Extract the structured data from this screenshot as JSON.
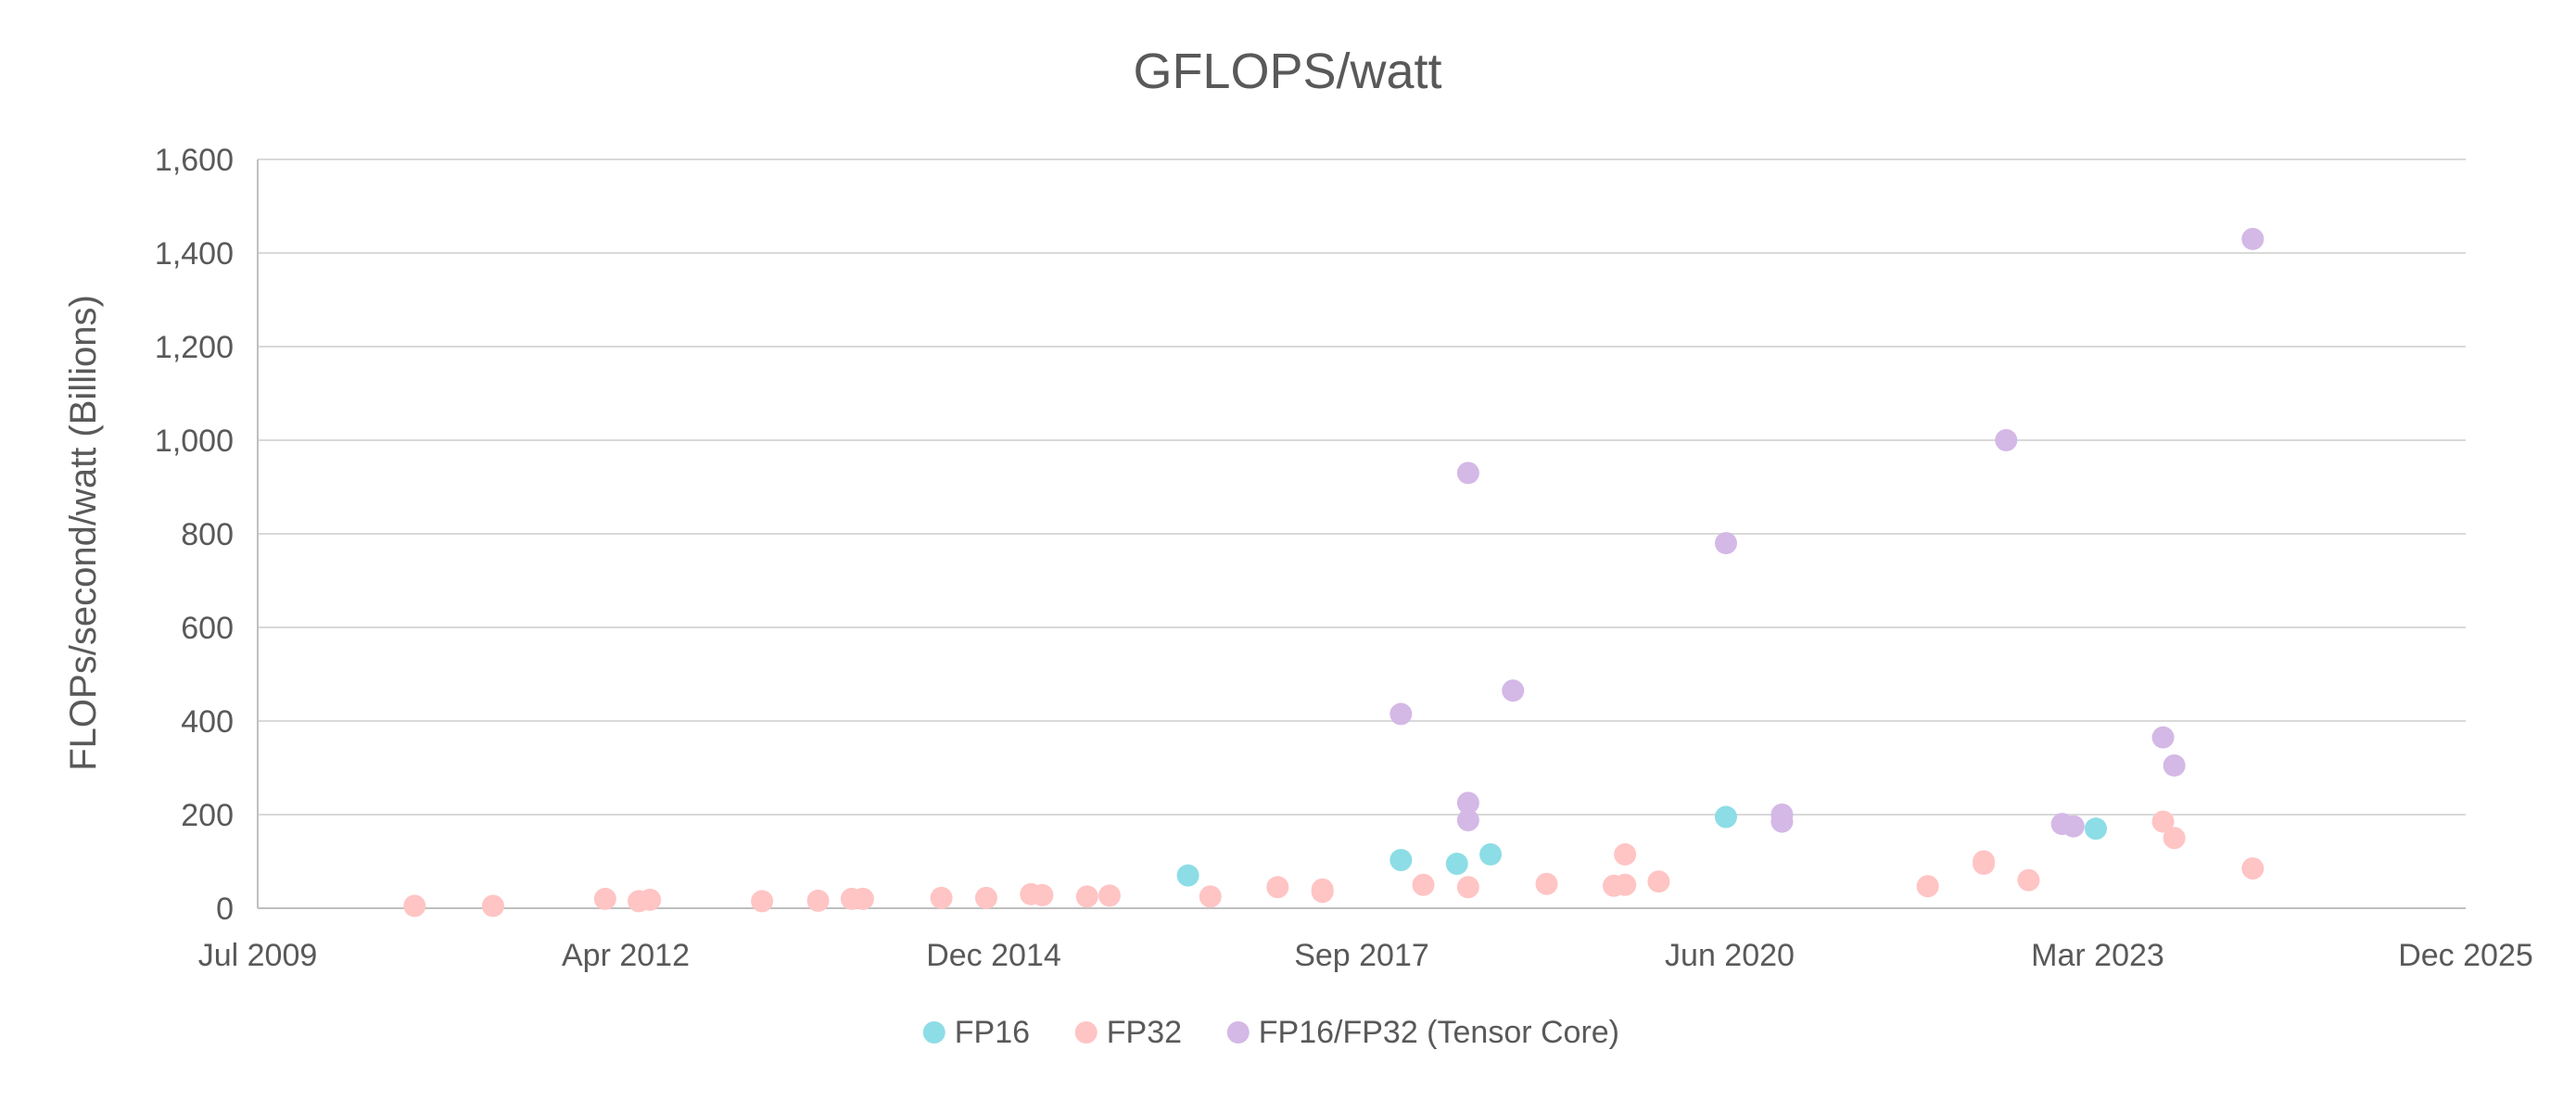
{
  "chart_data": {
    "type": "scatter",
    "title": "GFLOPS/watt",
    "xlabel": "",
    "ylabel": "FLOPs/second/watt (Billions)",
    "x_axis": {
      "type": "date",
      "range": [
        "2009-07",
        "2025-12"
      ],
      "tick_labels": [
        "Jul 2009",
        "Apr 2012",
        "Dec 2014",
        "Sep 2017",
        "Jun 2020",
        "Mar 2023",
        "Dec 2025"
      ]
    },
    "y_axis": {
      "range": [
        0,
        1600
      ],
      "tick_values": [
        0,
        200,
        400,
        600,
        800,
        1000,
        1200,
        1400,
        1600
      ],
      "tick_labels": [
        "0",
        "200",
        "400",
        "600",
        "800",
        "1,000",
        "1,200",
        "1,400",
        "1,600"
      ]
    },
    "grid": true,
    "legend_position": "bottom",
    "series": [
      {
        "name": "FP16",
        "color": "#8ddde6",
        "points": [
          {
            "x": "2016-06",
            "y": 70
          },
          {
            "x": "2018-01",
            "y": 103
          },
          {
            "x": "2018-06",
            "y": 95
          },
          {
            "x": "2018-09",
            "y": 115
          },
          {
            "x": "2020-06",
            "y": 195
          },
          {
            "x": "2023-03",
            "y": 170
          }
        ]
      },
      {
        "name": "FP32",
        "color": "#ffc4c4",
        "points": [
          {
            "x": "2010-09",
            "y": 5
          },
          {
            "x": "2011-04",
            "y": 5
          },
          {
            "x": "2012-02",
            "y": 20
          },
          {
            "x": "2012-05",
            "y": 15
          },
          {
            "x": "2012-06",
            "y": 18
          },
          {
            "x": "2013-04",
            "y": 15
          },
          {
            "x": "2013-09",
            "y": 16
          },
          {
            "x": "2013-12",
            "y": 20
          },
          {
            "x": "2014-01",
            "y": 20
          },
          {
            "x": "2014-08",
            "y": 22
          },
          {
            "x": "2014-12",
            "y": 22
          },
          {
            "x": "2015-04",
            "y": 30
          },
          {
            "x": "2015-05",
            "y": 28
          },
          {
            "x": "2015-09",
            "y": 25
          },
          {
            "x": "2015-11",
            "y": 27
          },
          {
            "x": "2016-08",
            "y": 25
          },
          {
            "x": "2017-02",
            "y": 45
          },
          {
            "x": "2017-06",
            "y": 40
          },
          {
            "x": "2017-06",
            "y": 35
          },
          {
            "x": "2018-03",
            "y": 50
          },
          {
            "x": "2018-07",
            "y": 45
          },
          {
            "x": "2019-02",
            "y": 52
          },
          {
            "x": "2019-08",
            "y": 48
          },
          {
            "x": "2019-09",
            "y": 115
          },
          {
            "x": "2019-09",
            "y": 50
          },
          {
            "x": "2019-12",
            "y": 57
          },
          {
            "x": "2021-12",
            "y": 47
          },
          {
            "x": "2022-05",
            "y": 95
          },
          {
            "x": "2022-05",
            "y": 100
          },
          {
            "x": "2022-09",
            "y": 60
          },
          {
            "x": "2023-09",
            "y": 185
          },
          {
            "x": "2023-10",
            "y": 150
          },
          {
            "x": "2024-05",
            "y": 85
          }
        ]
      },
      {
        "name": "FP16/FP32 (Tensor Core)",
        "color": "#d4b8e6",
        "points": [
          {
            "x": "2018-01",
            "y": 415
          },
          {
            "x": "2018-07",
            "y": 930
          },
          {
            "x": "2018-07",
            "y": 225
          },
          {
            "x": "2018-07",
            "y": 188
          },
          {
            "x": "2018-11",
            "y": 465
          },
          {
            "x": "2020-06",
            "y": 780
          },
          {
            "x": "2020-11",
            "y": 185
          },
          {
            "x": "2020-11",
            "y": 200
          },
          {
            "x": "2022-07",
            "y": 1000
          },
          {
            "x": "2022-12",
            "y": 180
          },
          {
            "x": "2023-01",
            "y": 175
          },
          {
            "x": "2023-09",
            "y": 365
          },
          {
            "x": "2023-10",
            "y": 305
          },
          {
            "x": "2024-05",
            "y": 1430
          }
        ]
      }
    ]
  }
}
